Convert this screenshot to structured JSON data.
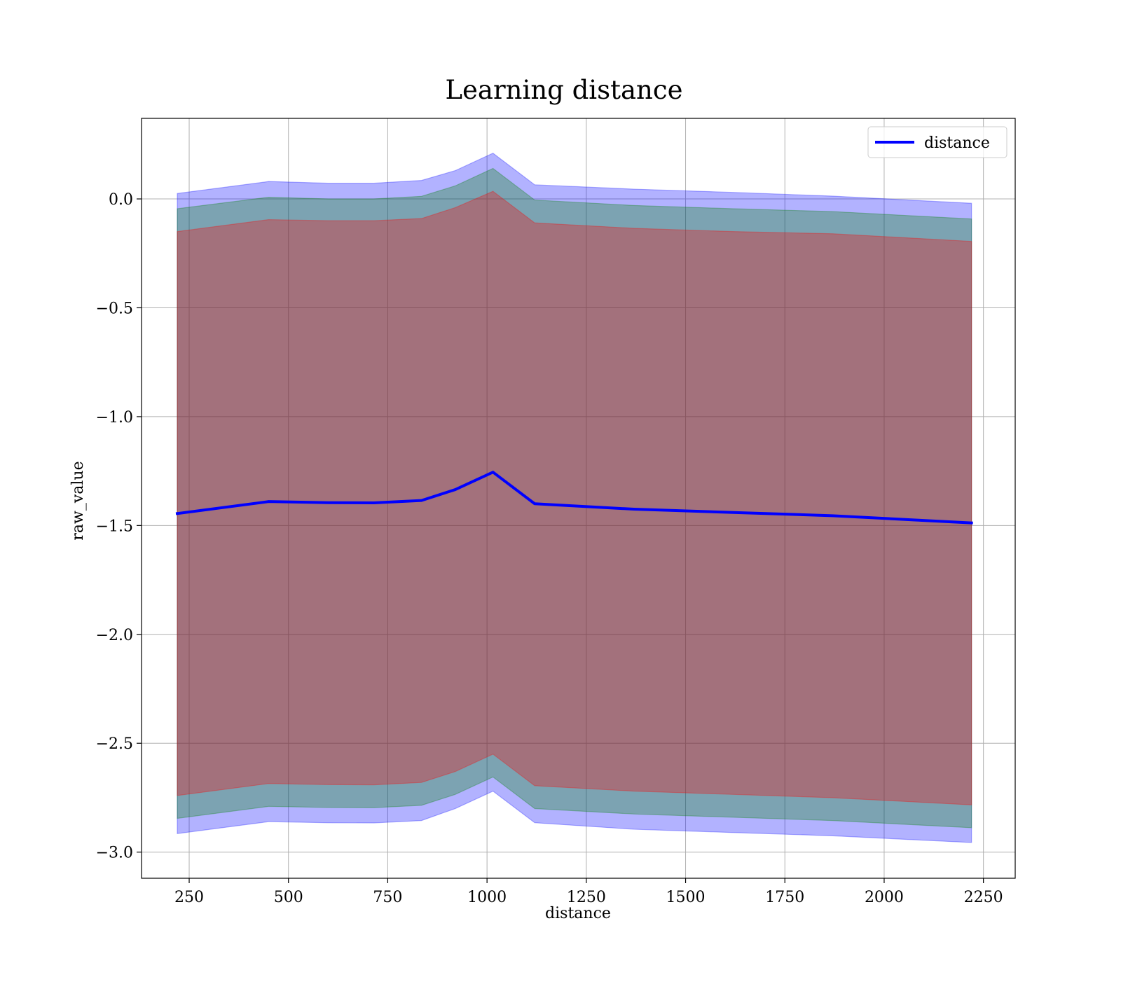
{
  "chart_data": {
    "type": "line",
    "title": "Learning distance",
    "xlabel": "distance",
    "ylabel": "raw_value",
    "xlim": [
      130,
      2330
    ],
    "ylim": [
      -3.12,
      0.37
    ],
    "x_ticks": [
      250,
      500,
      750,
      1000,
      1250,
      1500,
      1750,
      2000,
      2250
    ],
    "y_ticks": [
      0.0,
      -0.5,
      -1.0,
      -1.5,
      -2.0,
      -2.5,
      -3.0
    ],
    "x_tick_labels": [
      "250",
      "500",
      "750",
      "1000",
      "1250",
      "1500",
      "1750",
      "2000",
      "2250"
    ],
    "y_tick_labels": [
      "0.0",
      "−0.5",
      "−1.0",
      "−1.5",
      "−2.0",
      "−2.5",
      "−3.0"
    ],
    "grid": true,
    "legend_position": "top-right",
    "series": [
      {
        "name": "distance",
        "color": "#0000ff",
        "x": [
          220,
          450,
          600,
          715,
          835,
          920,
          1015,
          1120,
          1370,
          1620,
          1870,
          2220
        ],
        "y": [
          -1.445,
          -1.39,
          -1.395,
          -1.396,
          -1.385,
          -1.335,
          -1.255,
          -1.4,
          -1.425,
          -1.44,
          -1.455,
          -1.488
        ]
      }
    ],
    "bands": [
      {
        "color": "#0000ff",
        "opacity": 0.3,
        "x": [
          220,
          450,
          600,
          715,
          835,
          920,
          1015,
          1120,
          1370,
          1620,
          1870,
          2220
        ],
        "upper": [
          0.025,
          0.08,
          0.072,
          0.072,
          0.085,
          0.13,
          0.21,
          0.065,
          0.045,
          0.03,
          0.013,
          -0.02
        ],
        "lower": [
          -2.915,
          -2.86,
          -2.865,
          -2.866,
          -2.855,
          -2.8,
          -2.72,
          -2.865,
          -2.895,
          -2.91,
          -2.925,
          -2.956
        ]
      },
      {
        "color": "#008000",
        "opacity": 0.3,
        "x": [
          220,
          450,
          600,
          715,
          835,
          920,
          1015,
          1120,
          1370,
          1620,
          1870,
          2220
        ],
        "upper": [
          -0.045,
          0.008,
          0.0,
          0.0,
          0.012,
          0.06,
          0.14,
          -0.005,
          -0.03,
          -0.045,
          -0.058,
          -0.092
        ],
        "lower": [
          -2.845,
          -2.79,
          -2.795,
          -2.796,
          -2.785,
          -2.735,
          -2.655,
          -2.8,
          -2.825,
          -2.84,
          -2.855,
          -2.888
        ]
      },
      {
        "color": "#ff0000",
        "opacity": 0.3,
        "x": [
          220,
          450,
          600,
          715,
          835,
          920,
          1015,
          1120,
          1370,
          1620,
          1870,
          2220
        ],
        "upper": [
          -0.15,
          -0.095,
          -0.1,
          -0.1,
          -0.09,
          -0.04,
          0.035,
          -0.11,
          -0.135,
          -0.15,
          -0.16,
          -0.195
        ],
        "lower": [
          -2.74,
          -2.685,
          -2.69,
          -2.691,
          -2.68,
          -2.63,
          -2.55,
          -2.695,
          -2.72,
          -2.735,
          -2.75,
          -2.783
        ]
      }
    ]
  }
}
